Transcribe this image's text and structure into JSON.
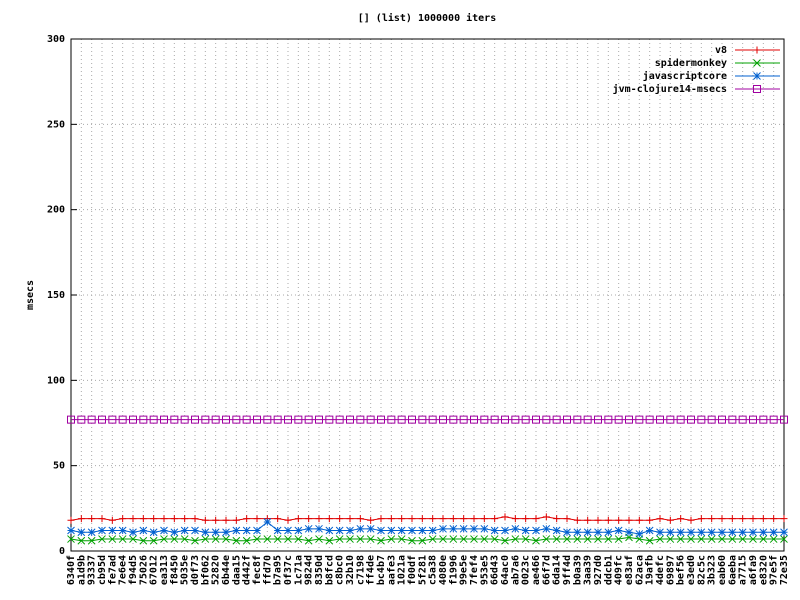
{
  "chart_data": {
    "type": "line",
    "title": "[] (list) 1000000 iters",
    "y_label": "msecs",
    "categories": [
      "6340f",
      "a1d9b",
      "93337",
      "cb95d",
      "fe7ad",
      "7e6e4",
      "f94d5",
      "75026",
      "67012",
      "ea313",
      "f8450",
      "5035e",
      "d0f73",
      "bf062",
      "52820",
      "6b44e",
      "daa15",
      "d442f",
      "fec8f",
      "ffd70",
      "b7a95",
      "0f37c",
      "1c71a",
      "9824d",
      "8350d",
      "b8fcd",
      "c8bc0",
      "32b10",
      "c7198",
      "ff4de",
      "bc4b7",
      "aafe3",
      "1021a",
      "f00df",
      "5f281",
      "c5a38",
      "4080e",
      "f1996",
      "99e5e",
      "7fef4",
      "953e5",
      "66d43",
      "64ac0",
      "ab7a6",
      "0023c",
      "ae466",
      "66f7d",
      "6da14",
      "9ff4d",
      "b0a39",
      "3aa39",
      "927d0",
      "ddcb1",
      "409fc",
      "e83af",
      "62aca",
      "19afb",
      "4defc",
      "69897",
      "bef56",
      "e3ed0",
      "82c5c",
      "3b323",
      "eab60",
      "6aeba",
      "a7715",
      "a6fa9",
      "e8320",
      "97e5f",
      "72e35"
    ],
    "series": [
      {
        "name": "v8",
        "color": "#e00000",
        "marker": "plus",
        "values": [
          18,
          19,
          19,
          19,
          18,
          19,
          19,
          19,
          19,
          19,
          19,
          19,
          19,
          18,
          18,
          18,
          18,
          19,
          19,
          19,
          19,
          18,
          19,
          19,
          19,
          19,
          19,
          19,
          19,
          18,
          19,
          19,
          19,
          19,
          19,
          19,
          19,
          19,
          19,
          19,
          19,
          19,
          20,
          19,
          19,
          19,
          20,
          19,
          19,
          18,
          18,
          18,
          18,
          18,
          18,
          18,
          18,
          19,
          18,
          19,
          18,
          19,
          19,
          19,
          19,
          19,
          19,
          19,
          19,
          19
        ]
      },
      {
        "name": "spidermonkey",
        "color": "#00a000",
        "marker": "cross",
        "values": [
          7,
          6,
          6,
          7,
          7,
          7,
          7,
          6,
          6,
          7,
          7,
          7,
          6,
          7,
          7,
          7,
          6,
          6,
          7,
          7,
          7,
          7,
          7,
          6,
          7,
          6,
          7,
          7,
          7,
          7,
          6,
          7,
          7,
          6,
          6,
          7,
          7,
          7,
          7,
          7,
          7,
          7,
          6,
          7,
          7,
          6,
          7,
          7,
          7,
          7,
          7,
          7,
          7,
          7,
          8,
          7,
          6,
          7,
          7,
          7,
          7,
          7,
          7,
          7,
          7,
          7,
          7,
          7,
          7,
          7
        ]
      },
      {
        "name": "javascriptcore",
        "color": "#0060d0",
        "marker": "star",
        "values": [
          12,
          11,
          11,
          12,
          12,
          12,
          11,
          12,
          11,
          12,
          11,
          12,
          12,
          11,
          11,
          11,
          12,
          12,
          12,
          17,
          12,
          12,
          12,
          13,
          13,
          12,
          12,
          12,
          13,
          13,
          12,
          12,
          12,
          12,
          12,
          12,
          13,
          13,
          13,
          13,
          13,
          12,
          12,
          13,
          12,
          12,
          13,
          12,
          11,
          11,
          11,
          11,
          11,
          12,
          11,
          10,
          12,
          11,
          11,
          11,
          11,
          11,
          11,
          11,
          11,
          11,
          11,
          11,
          11,
          11
        ]
      },
      {
        "name": "jvm-clojure14-msecs",
        "color": "#a000a0",
        "marker": "square",
        "values": [
          77,
          77,
          77,
          77,
          77,
          77,
          77,
          77,
          77,
          77,
          77,
          77,
          77,
          77,
          77,
          77,
          77,
          77,
          77,
          77,
          77,
          77,
          77,
          77,
          77,
          77,
          77,
          77,
          77,
          77,
          77,
          77,
          77,
          77,
          77,
          77,
          77,
          77,
          77,
          77,
          77,
          77,
          77,
          77,
          77,
          77,
          77,
          77,
          77,
          77,
          77,
          77,
          77,
          77,
          77,
          77,
          77,
          77,
          77,
          77,
          77,
          77,
          77,
          77,
          77,
          77,
          77,
          77,
          77,
          77
        ]
      }
    ],
    "ylim": [
      0,
      300
    ],
    "yticks": [
      0,
      50,
      100,
      150,
      200,
      250,
      300
    ],
    "grid": true,
    "legend": "top-right"
  }
}
